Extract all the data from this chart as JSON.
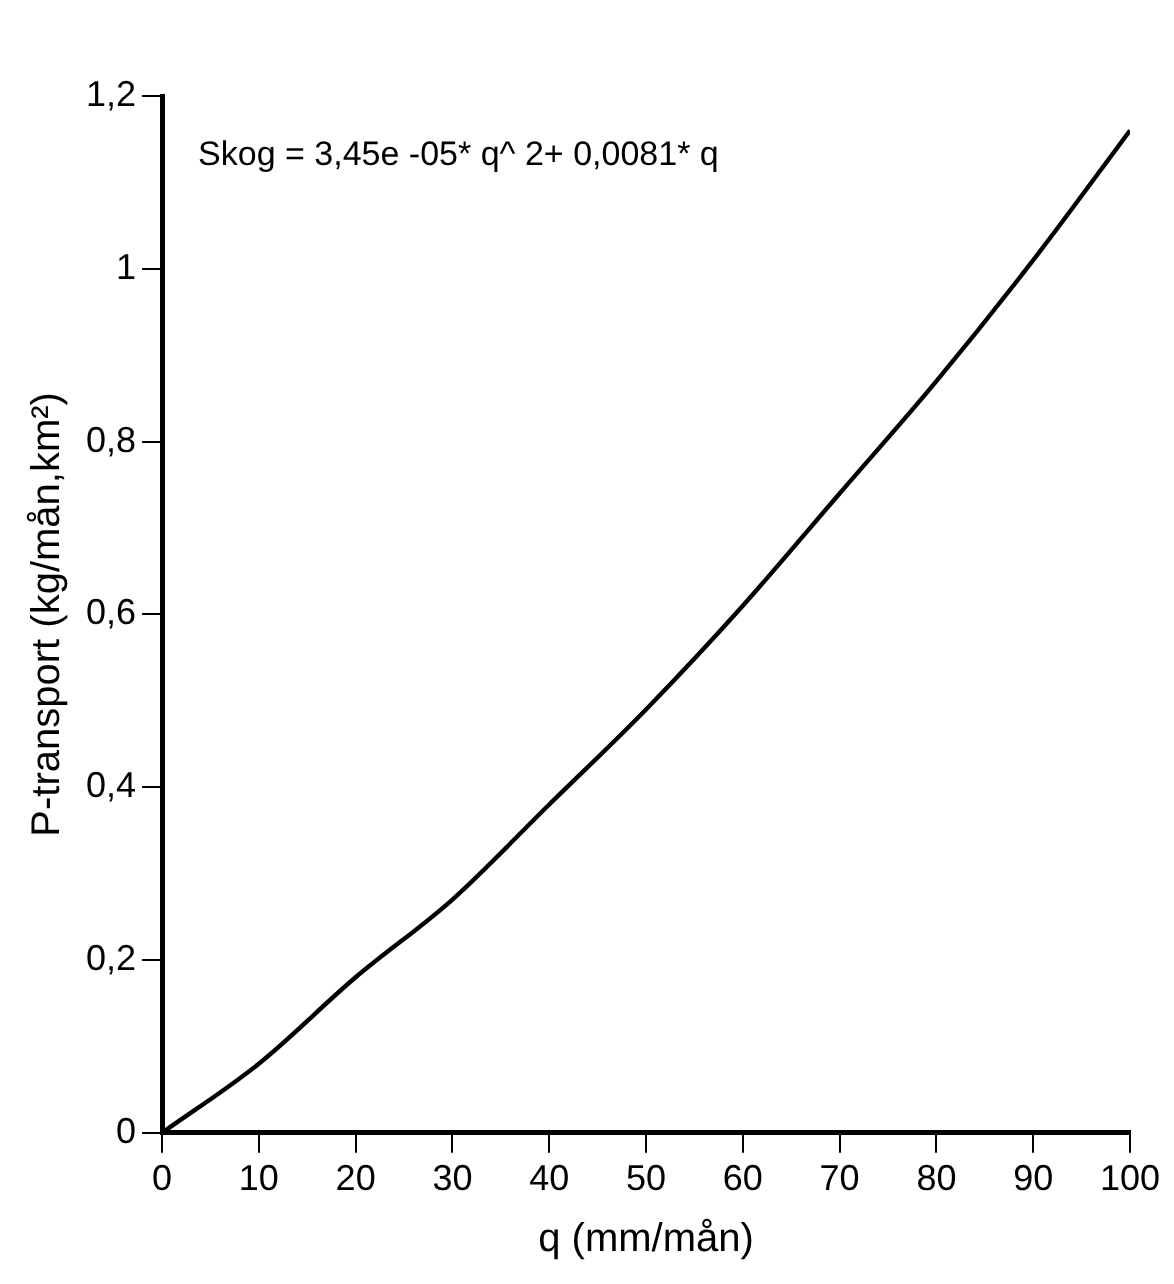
{
  "chart_data": {
    "type": "line",
    "xlabel": "q (mm/mån)",
    "ylabel": "P-transport (kg/mån,km²)",
    "annotations": [
      "Skog = 3,45e -05* q^ 2+ 0,0081* q"
    ],
    "x": [
      0,
      10,
      20,
      30,
      40,
      50,
      60,
      70,
      80,
      90,
      100
    ],
    "series": [
      {
        "color": "#000000",
        "values": [
          0,
          0.08,
          0.18,
          0.27,
          0.38,
          0.49,
          0.61,
          0.74,
          0.87,
          1.01,
          1.16
        ]
      }
    ],
    "xlim": [
      0,
      100
    ],
    "xticks": [
      0,
      10,
      20,
      30,
      40,
      50,
      60,
      70,
      80,
      90,
      100
    ],
    "ylim": [
      0,
      1.2
    ],
    "yticks": [
      0,
      {
        "value": 0.2,
        "label": "0,2"
      },
      {
        "value": 0.4,
        "label": "0,4"
      },
      {
        "value": 0.6,
        "label": "0,6"
      },
      {
        "value": 0.8,
        "label": "0,8"
      },
      1,
      {
        "value": 1.2,
        "label": "1,2"
      }
    ],
    "grid": false,
    "legend": false,
    "marker": "none",
    "line_style": "solid"
  }
}
